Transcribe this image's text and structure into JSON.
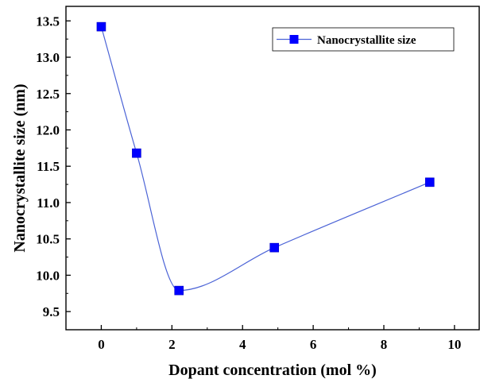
{
  "chart_data": {
    "type": "scatter",
    "title": "",
    "xlabel": "Dopant concentration (mol %)",
    "ylabel": "Nanocrystallite size (nm)",
    "xlim": [
      -1,
      10.7
    ],
    "ylim": [
      9.25,
      13.7
    ],
    "x_ticks": [
      0,
      2,
      4,
      6,
      8,
      10
    ],
    "y_ticks": [
      9.5,
      10.0,
      10.5,
      11.0,
      11.5,
      12.0,
      12.5,
      13.0,
      13.5
    ],
    "x_tick_labels": [
      "0",
      "2",
      "4",
      "6",
      "8",
      "10"
    ],
    "y_tick_labels": [
      "9.5",
      "10.0",
      "10.5",
      "11.0",
      "11.5",
      "12.0",
      "12.5",
      "13.0",
      "13.5"
    ],
    "grid": false,
    "legend_position": "top-right",
    "series": [
      {
        "name": "Nanocrystallite size",
        "color": "#0000ff",
        "line_color": "#4b63d6",
        "marker": "square",
        "line": "smooth",
        "x": [
          0,
          1,
          2.2,
          4.9,
          9.3
        ],
        "y": [
          13.42,
          11.68,
          9.79,
          10.38,
          11.28
        ]
      }
    ]
  }
}
